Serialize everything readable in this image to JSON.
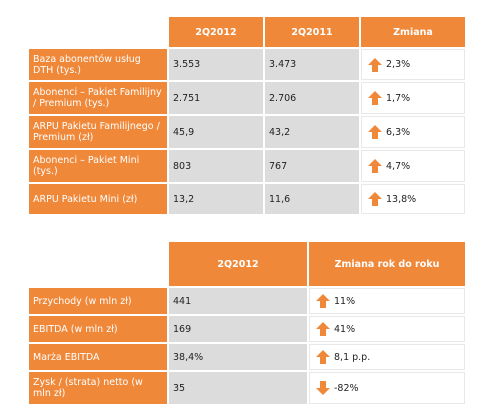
{
  "table1": {
    "headers": [
      "",
      "2Q2012",
      "2Q2011",
      "Zmiana"
    ],
    "rows": [
      {
        "label": "Baza abonentów usług DTH (tys.)",
        "v2012": "3.553",
        "v2011": "3.473",
        "direction": "up",
        "change": "2,3%"
      },
      {
        "label": "Abonenci – Pakiet Familijny / Premium (tys.)",
        "v2012": "2.751",
        "v2011": "2.706",
        "direction": "up",
        "change": "1,7%"
      },
      {
        "label": "ARPU Pakietu Familijnego / Premium (zł)",
        "v2012": "45,9",
        "v2011": "43,2",
        "direction": "up",
        "change": "6,3%"
      },
      {
        "label": "Abonenci – Pakiet Mini (tys.)",
        "v2012": "803",
        "v2011": "767",
        "direction": "up",
        "change": "4,7%"
      },
      {
        "label": "ARPU Pakietu Mini (zł)",
        "v2012": "13,2",
        "v2011": "11,6",
        "direction": "up",
        "change": "13,8%"
      }
    ]
  },
  "table2": {
    "headers": [
      "",
      "2Q2012",
      "Zmiana rok do roku"
    ],
    "rows": [
      {
        "label": "Przychody (w mln zł)",
        "value": "441",
        "direction": "up",
        "change": "11%"
      },
      {
        "label": "EBITDA (w mln zł)",
        "value": "169",
        "direction": "up",
        "change": "41%"
      },
      {
        "label": "Marża EBITDA",
        "value": "38,4%",
        "direction": "up",
        "change": "8,1 p.p."
      },
      {
        "label": "Zysk / (strata) netto (w mln zł)",
        "value": "35",
        "direction": "down",
        "change": "-82%"
      }
    ]
  },
  "colors": {
    "accent": "#f0883a",
    "cell": "#dcdcdc"
  }
}
